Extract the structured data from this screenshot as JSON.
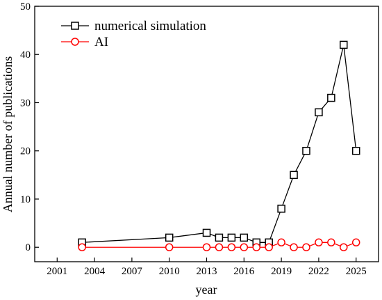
{
  "chart_data": {
    "type": "line",
    "xlabel": "year",
    "ylabel": "Annual number of publications",
    "xlim": [
      1999.2,
      2026.8
    ],
    "ylim": [
      -3,
      50
    ],
    "x_ticks": [
      2001,
      2004,
      2007,
      2010,
      2013,
      2016,
      2019,
      2022,
      2025
    ],
    "y_ticks": [
      0,
      10,
      20,
      30,
      40,
      50
    ],
    "grid": false,
    "legend_position": "top-left",
    "series": [
      {
        "name": "numerical simulation",
        "color": "#000000",
        "marker": "square",
        "x": [
          2003,
          2010,
          2013,
          2014,
          2015,
          2016,
          2017,
          2018,
          2019,
          2020,
          2021,
          2022,
          2023,
          2024,
          2025
        ],
        "y": [
          1,
          2,
          3,
          2,
          2,
          2,
          1,
          1,
          8,
          15,
          20,
          28,
          31,
          42,
          20
        ]
      },
      {
        "name": "AI",
        "color": "#ff0000",
        "marker": "circle",
        "x": [
          2003,
          2010,
          2013,
          2014,
          2015,
          2016,
          2017,
          2018,
          2019,
          2020,
          2021,
          2022,
          2023,
          2024,
          2025
        ],
        "y": [
          0,
          0,
          0,
          0,
          0,
          0,
          0,
          0,
          1,
          0,
          0,
          1,
          1,
          0,
          1
        ]
      }
    ]
  }
}
